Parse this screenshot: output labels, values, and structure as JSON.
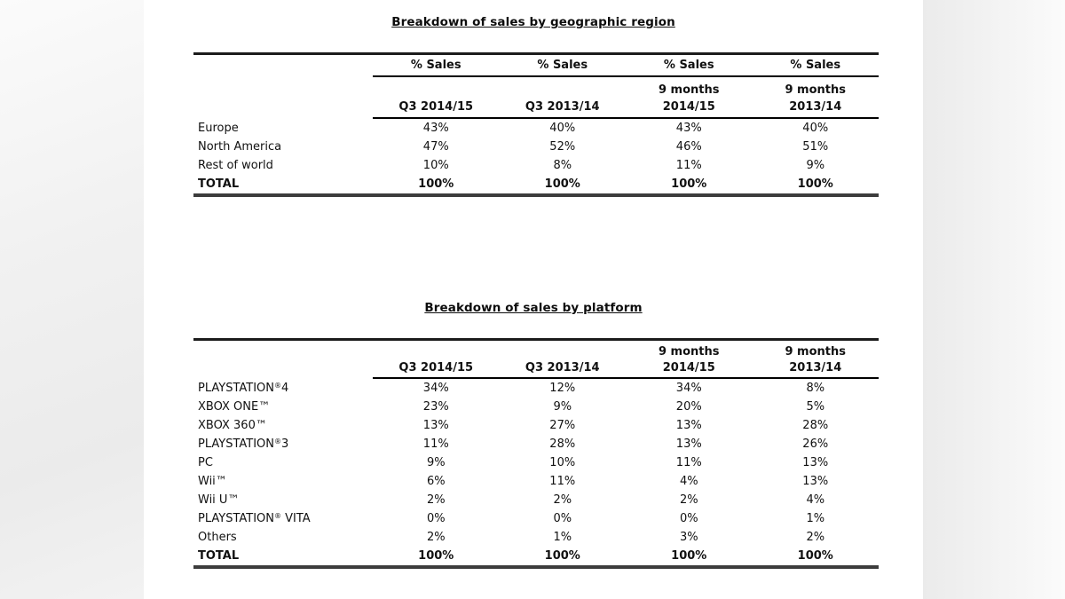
{
  "page": {
    "background": "#ffffff",
    "margin_shade_color": "#ebebeb",
    "text_color": "#111111",
    "rule_color": "#000000"
  },
  "tables": [
    {
      "id": "sales-by-region",
      "title": "Breakdown of sales by geographic region",
      "sales_header_row": [
        "% Sales",
        "% Sales",
        "% Sales",
        "% Sales"
      ],
      "column_headers": [
        {
          "line1": "",
          "line2": "Q3 2014/15"
        },
        {
          "line1": "",
          "line2": "Q3 2013/14"
        },
        {
          "line1": "9 months",
          "line2": "2014/15"
        },
        {
          "line1": "9 months",
          "line2": "2013/14"
        }
      ],
      "rows": [
        {
          "label": "Europe",
          "values": [
            "43%",
            "40%",
            "43%",
            "40%"
          ],
          "bold": false
        },
        {
          "label": "North America",
          "values": [
            "47%",
            "52%",
            "46%",
            "51%"
          ],
          "bold": false
        },
        {
          "label": "Rest of world",
          "values": [
            "10%",
            "8%",
            "11%",
            "9%"
          ],
          "bold": false
        },
        {
          "label": "TOTAL",
          "values": [
            "100%",
            "100%",
            "100%",
            "100%"
          ],
          "bold": true
        }
      ]
    },
    {
      "id": "sales-by-platform",
      "title": "Breakdown of sales by platform",
      "sales_header_row": null,
      "column_headers": [
        {
          "line1": "",
          "line2": "Q3 2014/15"
        },
        {
          "line1": "",
          "line2": "Q3 2013/14"
        },
        {
          "line1": "9 months",
          "line2": "2014/15"
        },
        {
          "line1": "9 months",
          "line2": "2013/14"
        }
      ],
      "rows": [
        {
          "label": "PLAYSTATION®4",
          "values": [
            "34%",
            "12%",
            "34%",
            "8%"
          ],
          "bold": false
        },
        {
          "label": "XBOX ONE™",
          "values": [
            "23%",
            "9%",
            "20%",
            "5%"
          ],
          "bold": false
        },
        {
          "label": "XBOX 360™",
          "values": [
            "13%",
            "27%",
            "13%",
            "28%"
          ],
          "bold": false
        },
        {
          "label": "PLAYSTATION®3",
          "values": [
            "11%",
            "28%",
            "13%",
            "26%"
          ],
          "bold": false
        },
        {
          "label": "PC",
          "values": [
            "9%",
            "10%",
            "11%",
            "13%"
          ],
          "bold": false
        },
        {
          "label": "Wii™",
          "values": [
            "6%",
            "11%",
            "4%",
            "13%"
          ],
          "bold": false
        },
        {
          "label": "Wii U™",
          "values": [
            "2%",
            "2%",
            "2%",
            "4%"
          ],
          "bold": false
        },
        {
          "label": "PLAYSTATION® VITA",
          "values": [
            "0%",
            "0%",
            "0%",
            "1%"
          ],
          "bold": false
        },
        {
          "label": "Others",
          "values": [
            "2%",
            "1%",
            "3%",
            "2%"
          ],
          "bold": false
        },
        {
          "label": "TOTAL",
          "values": [
            "100%",
            "100%",
            "100%",
            "100%"
          ],
          "bold": true
        }
      ]
    }
  ]
}
